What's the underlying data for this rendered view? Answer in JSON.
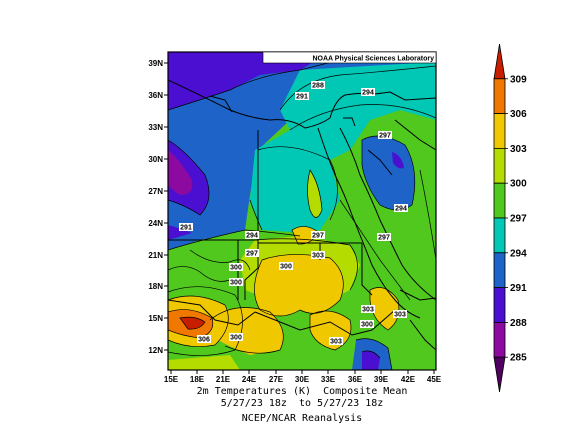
{
  "map": {
    "credit": "NOAA Physical Sciences Laboratory",
    "lat_ticks": [
      "39N",
      "36N",
      "33N",
      "30N",
      "27N",
      "24N",
      "21N",
      "18N",
      "15N",
      "12N"
    ],
    "lon_ticks": [
      "15E",
      "18E",
      "21E",
      "24E",
      "27E",
      "30E",
      "33E",
      "36E",
      "39E",
      "42E",
      "45E"
    ],
    "contour_labels": [
      "288",
      "291",
      "294",
      "297",
      "291",
      "294",
      "297",
      "297",
      "294",
      "300",
      "297",
      "300",
      "303",
      "300",
      "303",
      "303",
      "306",
      "300",
      "300",
      "303",
      "297"
    ]
  },
  "colorbar": {
    "labels": [
      "309",
      "306",
      "303",
      "300",
      "297",
      "294",
      "291",
      "288",
      "285"
    ],
    "colors": [
      "#c81e00",
      "#f07800",
      "#f0c800",
      "#b4dc00",
      "#50c81e",
      "#00c8b4",
      "#1e64c8",
      "#4b0fd2",
      "#8c0aa0",
      "#500060"
    ]
  },
  "caption": {
    "line1": "2m Temperatures (K)  Composite Mean",
    "line2": "5/27/23 18z  to 5/27/23 18z",
    "line3": "NCEP/NCAR Reanalysis"
  }
}
